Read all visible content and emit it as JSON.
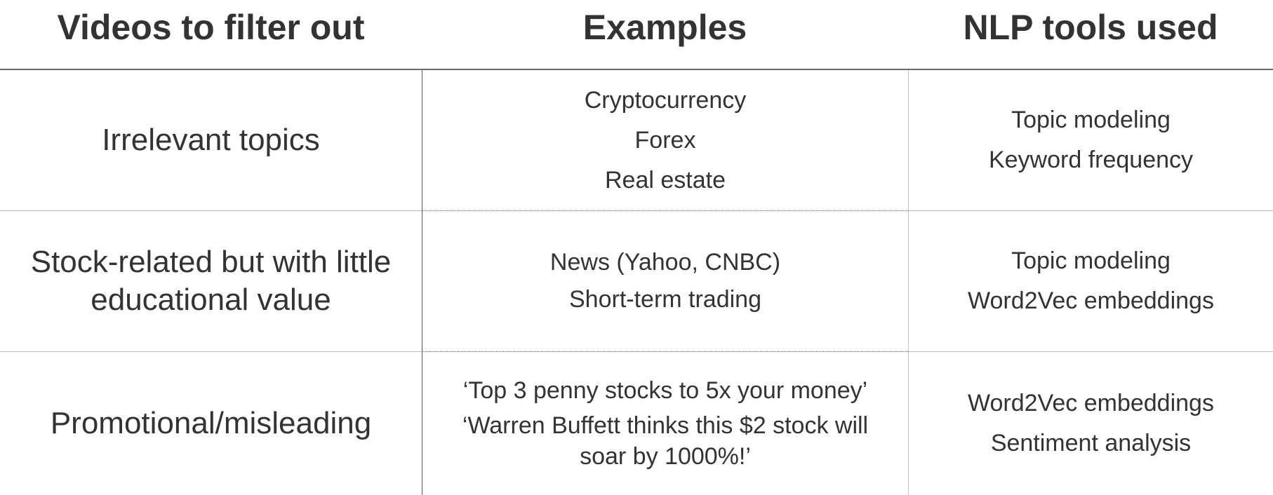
{
  "table": {
    "headers": [
      "Videos to filter out",
      "Examples",
      "NLP tools used"
    ],
    "rows": [
      {
        "category_lines": [
          "Irrelevant topics"
        ],
        "examples": [
          "Cryptocurrency",
          "Forex",
          "Real estate"
        ],
        "tools": [
          "Topic modeling",
          "Keyword frequency"
        ]
      },
      {
        "category_lines": [
          "Stock-related but with little",
          "educational value"
        ],
        "examples": [
          "News (Yahoo, CNBC)",
          "Short-term trading"
        ],
        "tools": [
          "Topic modeling",
          "Word2Vec embeddings"
        ]
      },
      {
        "category_lines": [
          "Promotional/misleading"
        ],
        "examples": [
          "‘Top 3 penny stocks to 5x your money’",
          "‘Warren Buffett thinks this $2 stock will soar by 1000%!’"
        ],
        "tools": [
          "Word2Vec embeddings",
          "Sentiment analysis"
        ]
      }
    ]
  }
}
